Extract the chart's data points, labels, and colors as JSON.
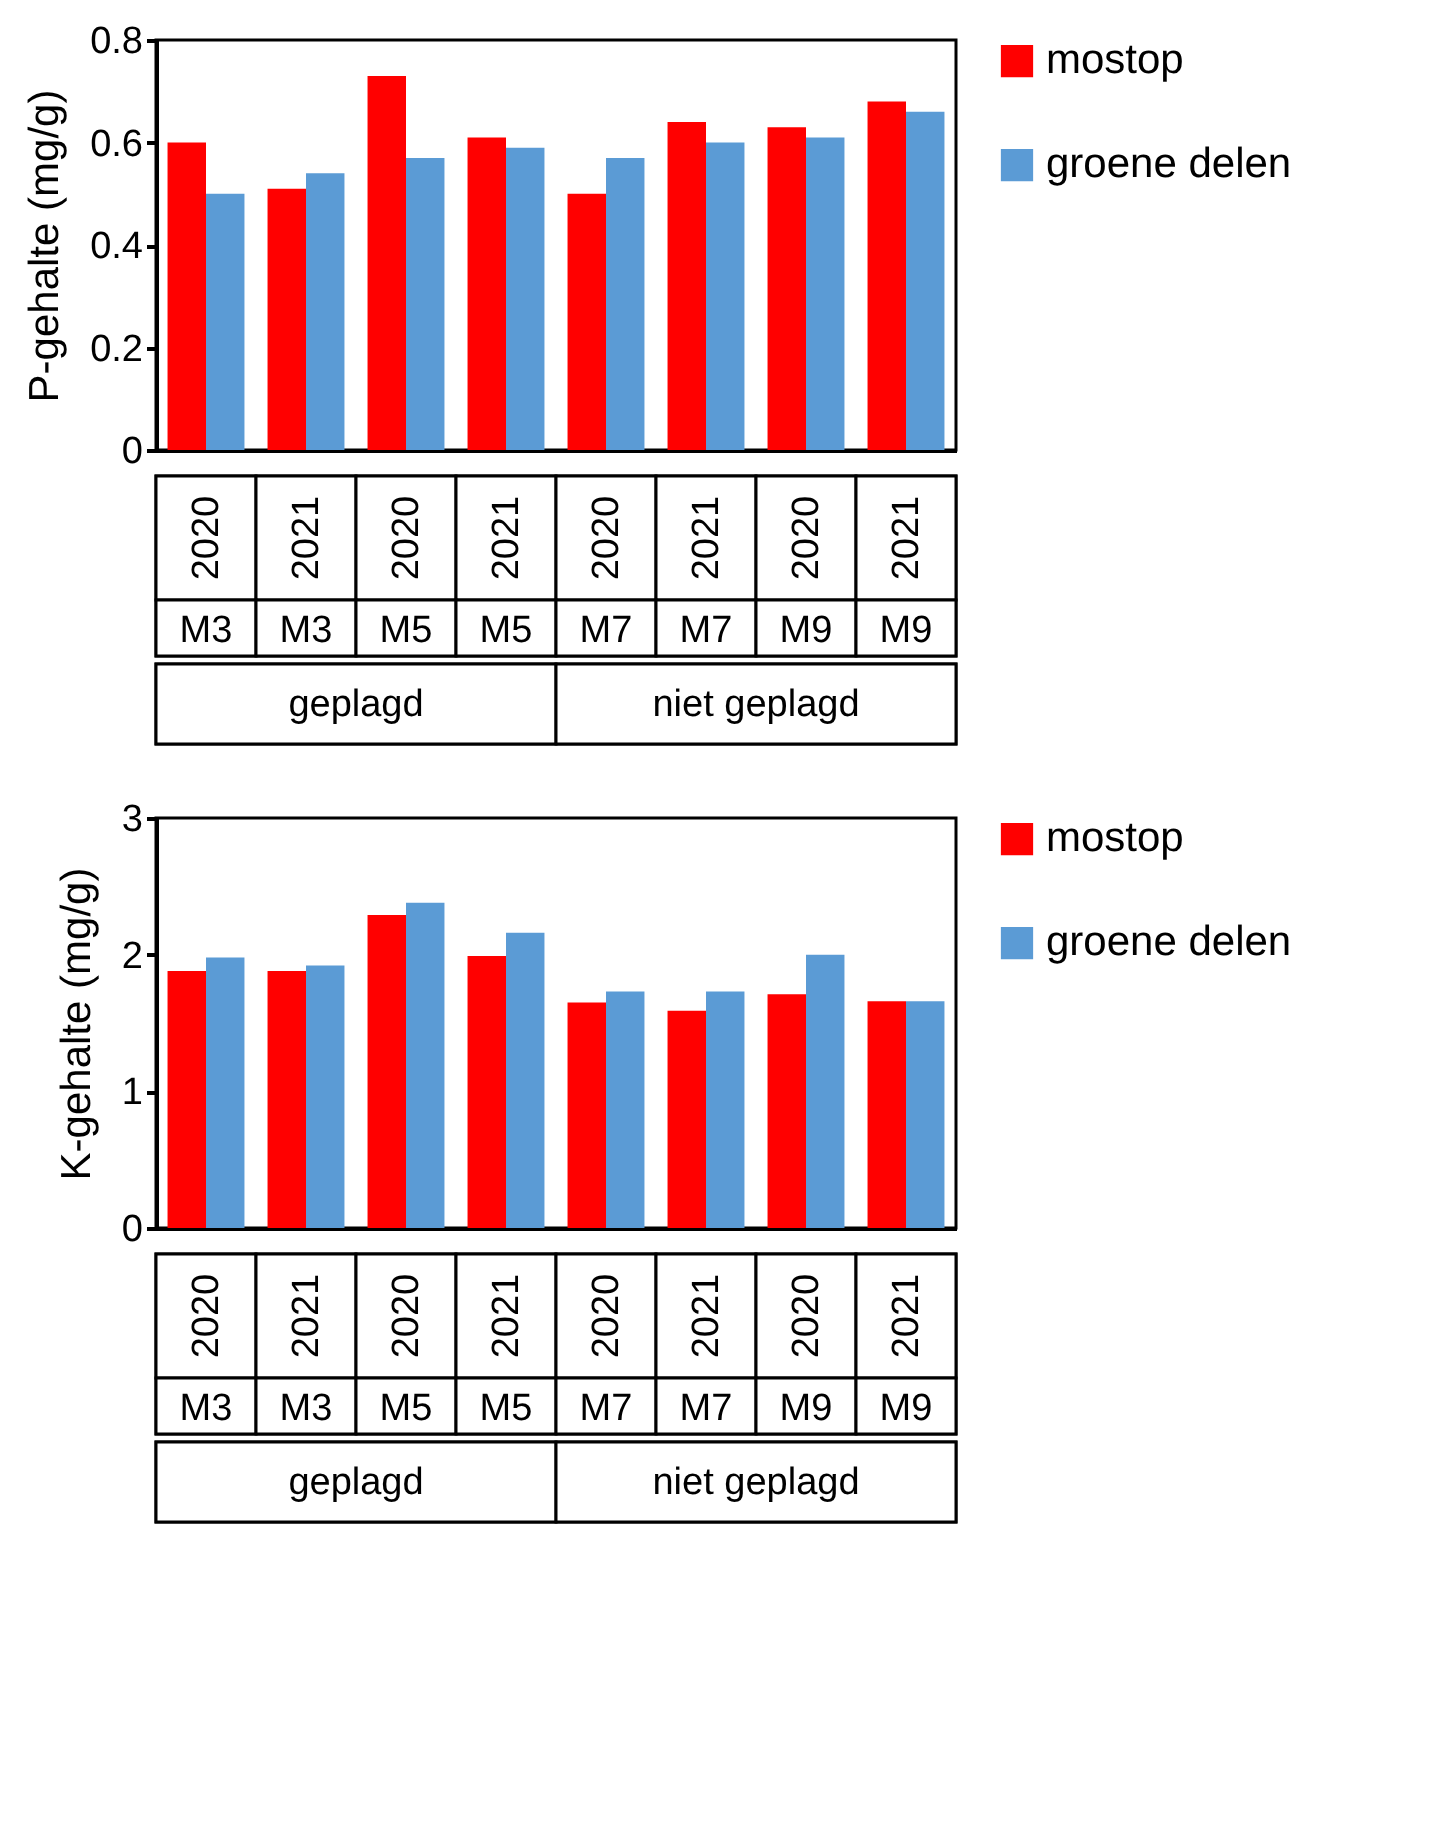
{
  "chart_data": [
    {
      "type": "bar",
      "ylabel": "P-gehalte (mg/g)",
      "categories": [
        "2020",
        "2021",
        "2020",
        "2021",
        "2020",
        "2021",
        "2020",
        "2021"
      ],
      "series": [
        {
          "name": "mostop",
          "color": "#ff0000",
          "values": [
            0.6,
            0.51,
            0.73,
            0.61,
            0.5,
            0.64,
            0.63,
            0.68
          ]
        },
        {
          "name": "groene delen",
          "color": "#5b9bd5",
          "values": [
            0.5,
            0.54,
            0.57,
            0.59,
            0.57,
            0.6,
            0.61,
            0.66
          ]
        }
      ],
      "ylim": [
        0,
        0.8
      ],
      "yticks": [
        0,
        0.2,
        0.4,
        0.6,
        0.8
      ],
      "legend": "right",
      "annotations": [
        "M3",
        "M3",
        "M5",
        "M5",
        "M7",
        "M7",
        "M9",
        "M9",
        "geplagd",
        "niet geplagd"
      ]
    },
    {
      "type": "bar",
      "ylabel": "K-gehalte (mg/g)",
      "categories": [
        "2020",
        "2021",
        "2020",
        "2021",
        "2020",
        "2021",
        "2020",
        "2021"
      ],
      "series": [
        {
          "name": "mostop",
          "color": "#ff0000",
          "values": [
            1.88,
            1.88,
            2.29,
            1.99,
            1.65,
            1.59,
            1.71,
            1.66
          ]
        },
        {
          "name": "groene delen",
          "color": "#5b9bd5",
          "values": [
            1.98,
            1.92,
            2.38,
            2.16,
            1.73,
            1.73,
            2.0,
            1.66
          ]
        }
      ],
      "ylim": [
        0,
        3
      ],
      "yticks": [
        0,
        1,
        2,
        3
      ],
      "legend": "right",
      "annotations": [
        "M3",
        "M3",
        "M5",
        "M5",
        "M7",
        "M7",
        "M9",
        "M9",
        "geplagd",
        "niet geplagd"
      ]
    }
  ]
}
